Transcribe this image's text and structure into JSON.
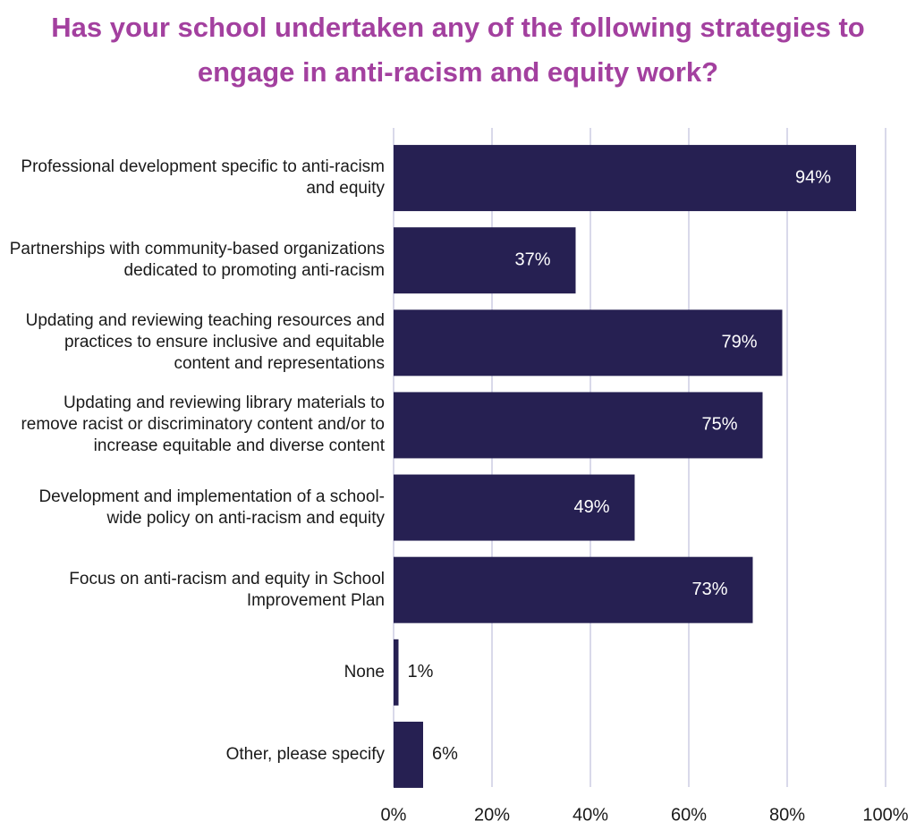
{
  "chart_data": {
    "type": "barh",
    "title": "Has your school undertaken any of the following strategies to engage in anti-racism and equity work?",
    "categories": [
      "Professional development specific to anti-racism and equity",
      "Partnerships with community-based organizations dedicated to promoting anti-racism",
      "Updating and reviewing teaching resources and practices to ensure inclusive and equitable content and representations",
      "Updating and reviewing library materials to remove racist or discriminatory content and/or to increase equitable and diverse content",
      "Development and implementation of a school-wide policy on anti-racism and equity",
      "Focus on anti-racism and equity in School Improvement Plan",
      "None",
      "Other, please specify"
    ],
    "values": [
      94,
      37,
      79,
      75,
      49,
      73,
      1,
      6
    ],
    "value_labels": [
      "94%",
      "37%",
      "79%",
      "75%",
      "49%",
      "73%",
      "1%",
      "6%"
    ],
    "color": "#262052",
    "xlim": [
      0,
      100
    ],
    "xticks": [
      {
        "value": 0,
        "label": "0%"
      },
      {
        "value": 20,
        "label": "20%"
      },
      {
        "value": 40,
        "label": "40%"
      },
      {
        "value": 60,
        "label": "60%"
      },
      {
        "value": 80,
        "label": "80%"
      },
      {
        "value": 100,
        "label": "100%"
      }
    ],
    "grid": true
  }
}
